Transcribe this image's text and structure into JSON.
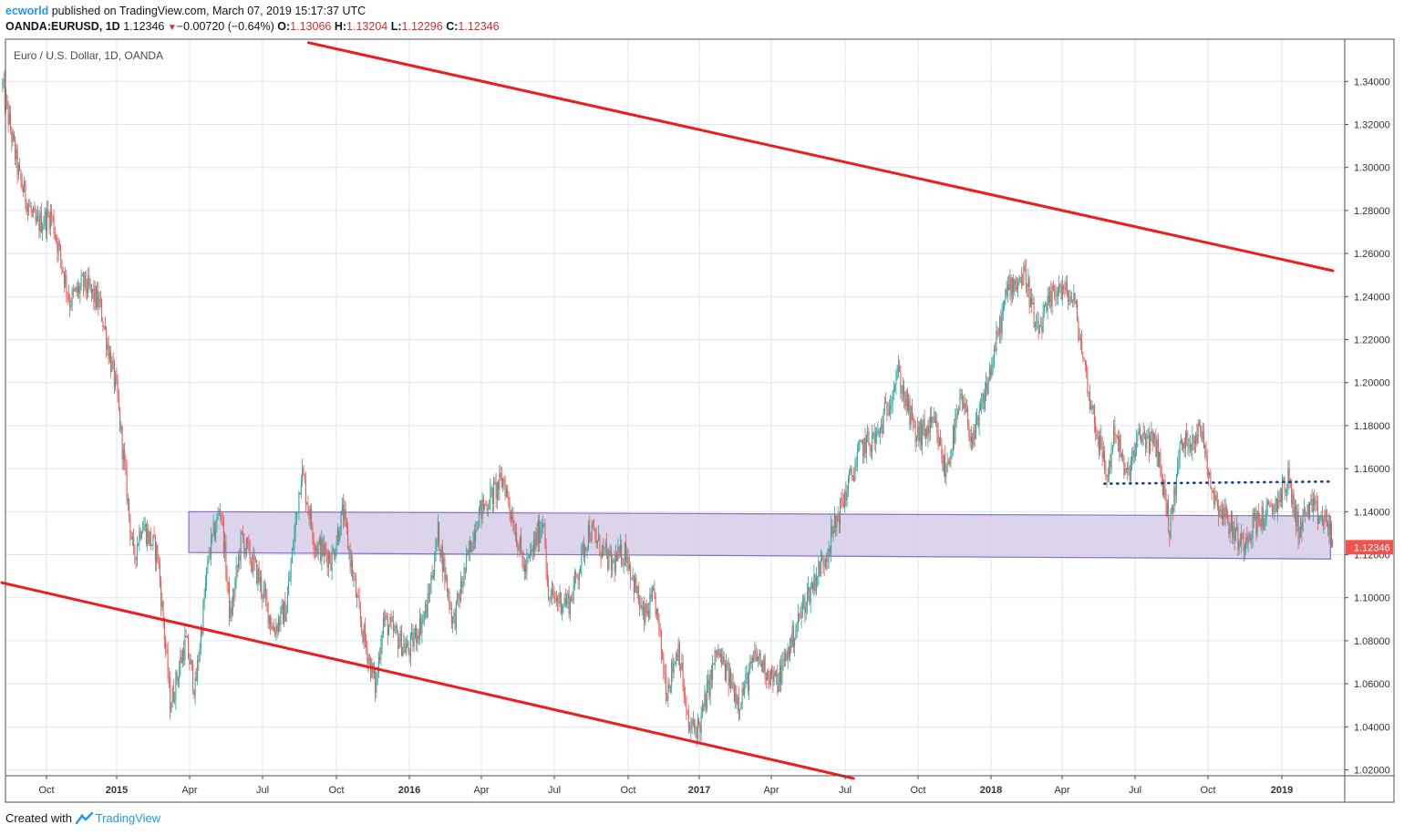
{
  "header": {
    "author": "ecworld",
    "published": " published on TradingView.com, March 07, 2019 15:17:37 UTC",
    "symbol": "OANDA:EURUSD, 1D",
    "last": "1.12346",
    "change": "−0.00720 (−0.64%)",
    "open_label": "O:",
    "open": "1.13066",
    "high_label": "H:",
    "high": "1.13204",
    "low_label": "L:",
    "low": "1.12296",
    "close_label": "C:",
    "close": "1.12346"
  },
  "footer": {
    "created_with": "Created with",
    "brand": "TradingView"
  },
  "colors": {
    "up": "#26a69a",
    "down": "#ef5350",
    "trendline": "#ee1c1c",
    "zone_fill": "#d5cce8",
    "zone_stroke": "#8c6fc4",
    "dotted": "#1e3a8a",
    "grid": "#dbe7f2",
    "price_badge": "#ef5350"
  },
  "chart_data": {
    "type": "candlestick",
    "title": "Euro / U.S. Dollar, 1D, OANDA",
    "ylim": [
      1.016,
      1.356
    ],
    "y_ticks": [
      "1.34000",
      "1.32000",
      "1.30000",
      "1.28000",
      "1.26000",
      "1.24000",
      "1.22000",
      "1.20000",
      "1.18000",
      "1.16000",
      "1.14000",
      "1.12000",
      "1.10000",
      "1.08000",
      "1.06000",
      "1.04000",
      "1.02000"
    ],
    "x_ticks": [
      "Oct",
      "2015",
      "Apr",
      "Jul",
      "Oct",
      "2016",
      "Apr",
      "Jul",
      "Oct",
      "2017",
      "Apr",
      "Jul",
      "Oct",
      "2018",
      "Apr",
      "Jul",
      "Oct",
      "2019"
    ],
    "x_range": [
      "2014-08-14",
      "2019-03-07"
    ],
    "last_price": "1.12346",
    "price_path": [
      [
        "2014-08-15",
        1.338
      ],
      [
        "2014-09-05",
        1.295
      ],
      [
        "2014-09-25",
        1.273
      ],
      [
        "2014-10-15",
        1.278
      ],
      [
        "2014-11-07",
        1.238
      ],
      [
        "2014-11-25",
        1.246
      ],
      [
        "2014-12-15",
        1.236
      ],
      [
        "2015-01-05",
        1.195
      ],
      [
        "2015-01-26",
        1.118
      ],
      [
        "2015-02-05",
        1.135
      ],
      [
        "2015-02-25",
        1.12
      ],
      [
        "2015-03-13",
        1.05
      ],
      [
        "2015-04-01",
        1.08
      ],
      [
        "2015-04-13",
        1.057
      ],
      [
        "2015-04-30",
        1.12
      ],
      [
        "2015-05-15",
        1.143
      ],
      [
        "2015-05-27",
        1.09
      ],
      [
        "2015-06-10",
        1.128
      ],
      [
        "2015-07-01",
        1.11
      ],
      [
        "2015-07-20",
        1.085
      ],
      [
        "2015-08-05",
        1.095
      ],
      [
        "2015-08-24",
        1.16
      ],
      [
        "2015-09-10",
        1.125
      ],
      [
        "2015-10-01",
        1.118
      ],
      [
        "2015-10-15",
        1.14
      ],
      [
        "2015-11-05",
        1.09
      ],
      [
        "2015-11-25",
        1.058
      ],
      [
        "2015-12-04",
        1.09
      ],
      [
        "2016-01-05",
        1.075
      ],
      [
        "2016-01-28",
        1.095
      ],
      [
        "2016-02-11",
        1.13
      ],
      [
        "2016-03-01",
        1.088
      ],
      [
        "2016-03-31",
        1.138
      ],
      [
        "2016-05-03",
        1.155
      ],
      [
        "2016-05-30",
        1.112
      ],
      [
        "2016-06-23",
        1.138
      ],
      [
        "2016-06-27",
        1.1
      ],
      [
        "2016-07-25",
        1.098
      ],
      [
        "2016-08-18",
        1.132
      ],
      [
        "2016-09-15",
        1.115
      ],
      [
        "2016-10-03",
        1.122
      ],
      [
        "2016-10-25",
        1.09
      ],
      [
        "2016-11-08",
        1.1
      ],
      [
        "2016-11-23",
        1.057
      ],
      [
        "2016-12-08",
        1.078
      ],
      [
        "2016-12-20",
        1.039
      ],
      [
        "2017-01-03",
        1.04
      ],
      [
        "2017-01-25",
        1.075
      ],
      [
        "2017-02-22",
        1.052
      ],
      [
        "2017-03-15",
        1.073
      ],
      [
        "2017-04-10",
        1.06
      ],
      [
        "2017-05-15",
        1.098
      ],
      [
        "2017-06-10",
        1.12
      ],
      [
        "2017-06-30",
        1.143
      ],
      [
        "2017-07-25",
        1.17
      ],
      [
        "2017-08-15",
        1.175
      ],
      [
        "2017-09-08",
        1.205
      ],
      [
        "2017-10-01",
        1.175
      ],
      [
        "2017-10-25",
        1.18
      ],
      [
        "2017-11-07",
        1.158
      ],
      [
        "2017-11-27",
        1.192
      ],
      [
        "2017-12-12",
        1.172
      ],
      [
        "2018-01-02",
        1.205
      ],
      [
        "2018-01-25",
        1.245
      ],
      [
        "2018-02-16",
        1.25
      ],
      [
        "2018-03-01",
        1.222
      ],
      [
        "2018-03-27",
        1.245
      ],
      [
        "2018-04-17",
        1.238
      ],
      [
        "2018-05-07",
        1.192
      ],
      [
        "2018-05-29",
        1.155
      ],
      [
        "2018-06-07",
        1.18
      ],
      [
        "2018-06-21",
        1.155
      ],
      [
        "2018-07-09",
        1.176
      ],
      [
        "2018-07-30",
        1.17
      ],
      [
        "2018-08-15",
        1.132
      ],
      [
        "2018-08-28",
        1.17
      ],
      [
        "2018-09-24",
        1.178
      ],
      [
        "2018-10-08",
        1.148
      ],
      [
        "2018-10-31",
        1.133
      ],
      [
        "2018-11-12",
        1.125
      ],
      [
        "2018-11-28",
        1.135
      ],
      [
        "2018-12-20",
        1.14
      ],
      [
        "2019-01-10",
        1.155
      ],
      [
        "2019-01-23",
        1.132
      ],
      [
        "2019-02-05",
        1.142
      ],
      [
        "2019-02-26",
        1.135
      ],
      [
        "2019-03-04",
        1.132
      ],
      [
        "2019-03-07",
        1.123
      ]
    ],
    "annotations": {
      "upper_trendline": [
        [
          "2015-09-02",
          1.358
        ],
        [
          "2019-03-07",
          1.252
        ]
      ],
      "lower_trendline": [
        [
          "2014-08-14",
          1.107
        ],
        [
          "2017-07-15",
          1.016
        ]
      ],
      "support_zone_top": [
        [
          "2015-04-05",
          1.14
        ],
        [
          "2019-03-04",
          1.138
        ]
      ],
      "support_zone_bottom": [
        [
          "2015-04-05",
          1.121
        ],
        [
          "2019-03-04",
          1.118
        ]
      ],
      "dotted_resistance": [
        [
          "2018-05-25",
          1.153
        ],
        [
          "2019-03-04",
          1.154
        ]
      ]
    }
  }
}
